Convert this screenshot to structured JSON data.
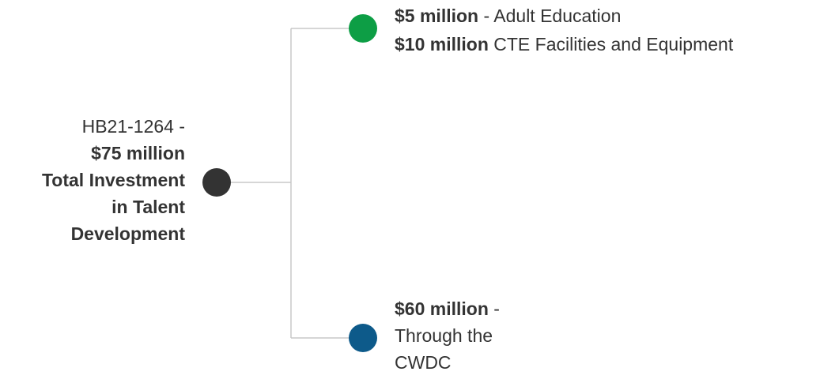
{
  "colors": {
    "root_node": "#333333",
    "top_node": "#0d9e45",
    "bottom_node": "#0d5a8a",
    "connector": "#c8c8c8",
    "text": "#333333"
  },
  "root": {
    "line1": "HB21-1264 -",
    "line2": "$75 million",
    "line3": "Total Investment",
    "line4": "in Talent",
    "line5": "Development"
  },
  "top_branch": {
    "item1_amount": "$5 million",
    "item1_desc": " - Adult Education",
    "item2_amount": "$10 million",
    "item2_desc": " CTE Facilities and Equipment"
  },
  "bottom_branch": {
    "amount": "$60 million",
    "suffix": " -",
    "line2": "Through the",
    "line3": "CWDC"
  }
}
